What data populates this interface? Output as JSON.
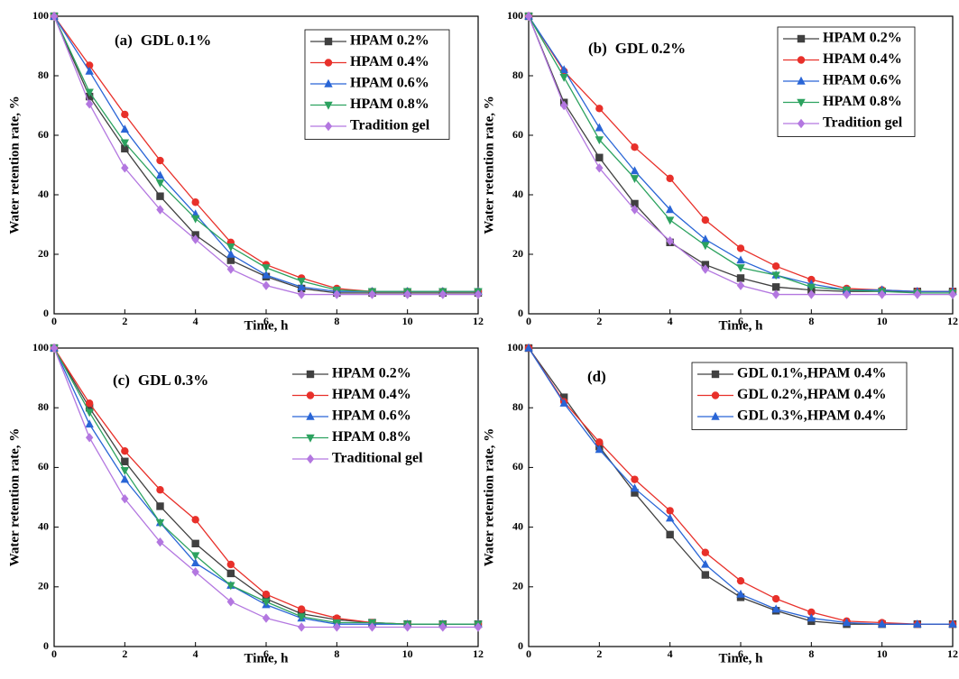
{
  "chart_data": [
    {
      "type": "line",
      "panel_label": "(a)",
      "annotation": "GDL 0.1%",
      "annotation_color": "#e8302a",
      "x_label": "Time, h",
      "y_label": "Water retention rate, %",
      "x": [
        0,
        1,
        2,
        3,
        4,
        5,
        6,
        7,
        8,
        9,
        10,
        11,
        12
      ],
      "xlim": [
        0,
        12
      ],
      "xticks": [
        0,
        2,
        4,
        6,
        8,
        10,
        12
      ],
      "ylim": [
        0,
        100
      ],
      "yticks": [
        0,
        20,
        40,
        60,
        80,
        100
      ],
      "legend": "upper right",
      "legend_frame": true,
      "series": [
        {
          "name": "HPAM 0.2%",
          "color": "#404040",
          "marker": "square",
          "values": [
            100,
            73,
            55.5,
            39.5,
            26.5,
            18,
            12.5,
            8.5,
            7,
            7,
            7,
            7,
            7
          ]
        },
        {
          "name": "HPAM 0.4%",
          "color": "#e8302a",
          "marker": "circle",
          "values": [
            100,
            83.5,
            67,
            51.5,
            37.5,
            24,
            16.5,
            12,
            8.5,
            7.5,
            7.5,
            7.5,
            7.5
          ]
        },
        {
          "name": "HPAM 0.6%",
          "color": "#2965d6",
          "marker": "triangle-up",
          "values": [
            100,
            81.5,
            62,
            46.5,
            33.5,
            20,
            13,
            9,
            7.5,
            7.5,
            7.5,
            7.5,
            7.5
          ]
        },
        {
          "name": "HPAM 0.8%",
          "color": "#2ca25f",
          "marker": "triangle-down",
          "values": [
            100,
            74.5,
            57.5,
            44,
            32,
            22.5,
            15.5,
            11,
            8,
            7.5,
            7.5,
            7.5,
            7.5
          ]
        },
        {
          "name": "Tradition gel",
          "color": "#b377e0",
          "marker": "diamond",
          "values": [
            100,
            70.5,
            49,
            35,
            25,
            15,
            9.5,
            6.5,
            6.5,
            6.5,
            6.5,
            6.5,
            6.5
          ]
        }
      ]
    },
    {
      "type": "line",
      "panel_label": "(b)",
      "annotation": "GDL 0.2%",
      "annotation_color": "#e8302a",
      "x_label": "Time, h",
      "y_label": "Water retention rate, %",
      "x": [
        0,
        1,
        2,
        3,
        4,
        5,
        6,
        7,
        8,
        9,
        10,
        11,
        12
      ],
      "xlim": [
        0,
        12
      ],
      "xticks": [
        0,
        2,
        4,
        6,
        8,
        10,
        12
      ],
      "ylim": [
        0,
        100
      ],
      "yticks": [
        0,
        20,
        40,
        60,
        80,
        100
      ],
      "legend": "upper right",
      "legend_frame": true,
      "series": [
        {
          "name": "HPAM 0.2%",
          "color": "#404040",
          "marker": "square",
          "values": [
            100,
            71,
            52.5,
            37,
            24,
            16.5,
            12,
            9,
            8,
            7.5,
            7.5,
            7.5,
            7.5
          ]
        },
        {
          "name": "HPAM 0.4%",
          "color": "#e8302a",
          "marker": "circle",
          "values": [
            100,
            81.5,
            69,
            56,
            45.5,
            31.5,
            22,
            16,
            11.5,
            8.5,
            8,
            7.5,
            7.5
          ]
        },
        {
          "name": "HPAM 0.6%",
          "color": "#2965d6",
          "marker": "triangle-up",
          "values": [
            100,
            82,
            62.5,
            48,
            35,
            25,
            18,
            13,
            10,
            8,
            8,
            7.5,
            7.5
          ]
        },
        {
          "name": "HPAM 0.8%",
          "color": "#2ca25f",
          "marker": "triangle-down",
          "values": [
            100,
            79.5,
            58.5,
            45.5,
            31.5,
            23,
            15.5,
            13,
            9,
            8,
            7.5,
            7,
            7
          ]
        },
        {
          "name": "Tradition gel",
          "color": "#b377e0",
          "marker": "diamond",
          "values": [
            100,
            70,
            49,
            35,
            24.5,
            15,
            9.5,
            6.5,
            6.5,
            6.5,
            6.5,
            6.5,
            6.5
          ]
        }
      ]
    },
    {
      "type": "line",
      "panel_label": "(c)",
      "annotation": "GDL 0.3%",
      "annotation_color": "#e8302a",
      "x_label": "Time, h",
      "y_label": "Water retention rate, %",
      "x": [
        0,
        1,
        2,
        3,
        4,
        5,
        6,
        7,
        8,
        9,
        10,
        11,
        12
      ],
      "xlim": [
        0,
        12
      ],
      "xticks": [
        0,
        2,
        4,
        6,
        8,
        10,
        12
      ],
      "ylim": [
        0,
        100
      ],
      "yticks": [
        0,
        20,
        40,
        60,
        80,
        100
      ],
      "legend": "upper right",
      "legend_frame": false,
      "series": [
        {
          "name": "HPAM 0.2%",
          "color": "#404040",
          "marker": "square",
          "values": [
            100,
            80,
            62,
            47,
            34.5,
            24.5,
            16,
            11,
            9,
            8,
            7.5,
            7.5,
            7.5
          ]
        },
        {
          "name": "HPAM 0.4%",
          "color": "#e8302a",
          "marker": "circle",
          "values": [
            100,
            81.5,
            65.5,
            52.5,
            42.5,
            27.5,
            17.5,
            12.5,
            9.5,
            8,
            7.5,
            7.5,
            7.5
          ]
        },
        {
          "name": "HPAM 0.6%",
          "color": "#2965d6",
          "marker": "triangle-up",
          "values": [
            100,
            74.5,
            56,
            41.5,
            28,
            20.5,
            14,
            9.5,
            7.5,
            7.5,
            7.5,
            7.5,
            7.5
          ]
        },
        {
          "name": "HPAM 0.8%",
          "color": "#2ca25f",
          "marker": "triangle-down",
          "values": [
            100,
            78.5,
            59,
            41.5,
            30.5,
            20.5,
            15,
            10,
            8,
            8,
            7.5,
            7.5,
            7.5
          ]
        },
        {
          "name": "Traditional gel",
          "color": "#b377e0",
          "marker": "diamond",
          "values": [
            100,
            70,
            49.5,
            35,
            25,
            15,
            9.5,
            6.5,
            6.5,
            6.5,
            6.5,
            6.5,
            6.5
          ]
        }
      ]
    },
    {
      "type": "line",
      "panel_label": "(d)",
      "x_label": "Time, h",
      "y_label": "Water retention rate, %",
      "x": [
        0,
        1,
        2,
        3,
        4,
        5,
        6,
        7,
        8,
        9,
        10,
        11,
        12
      ],
      "xlim": [
        0,
        12
      ],
      "xticks": [
        0,
        2,
        4,
        6,
        8,
        10,
        12
      ],
      "ylim": [
        0,
        100
      ],
      "yticks": [
        0,
        20,
        40,
        60,
        80,
        100
      ],
      "legend": "upper right",
      "legend_frame": true,
      "series": [
        {
          "name": "GDL 0.1%,HPAM 0.4%",
          "color": "#404040",
          "marker": "square",
          "values": [
            100,
            83.5,
            67,
            51.5,
            37.5,
            24,
            16.5,
            12,
            8.5,
            7.5,
            7.5,
            7.5,
            7.5
          ]
        },
        {
          "name": "GDL 0.2%,HPAM 0.4%",
          "color": "#e8302a",
          "marker": "circle",
          "values": [
            100,
            82,
            68.5,
            56,
            45.5,
            31.5,
            22,
            16,
            11.5,
            8.5,
            8,
            7.5,
            7.5
          ]
        },
        {
          "name": "GDL 0.3%,HPAM 0.4%",
          "color": "#2965d6",
          "marker": "triangle-up",
          "values": [
            100,
            81.5,
            66,
            53,
            43,
            27.5,
            17.5,
            12.5,
            9.5,
            8,
            7.5,
            7.5,
            7.5
          ]
        }
      ]
    }
  ]
}
